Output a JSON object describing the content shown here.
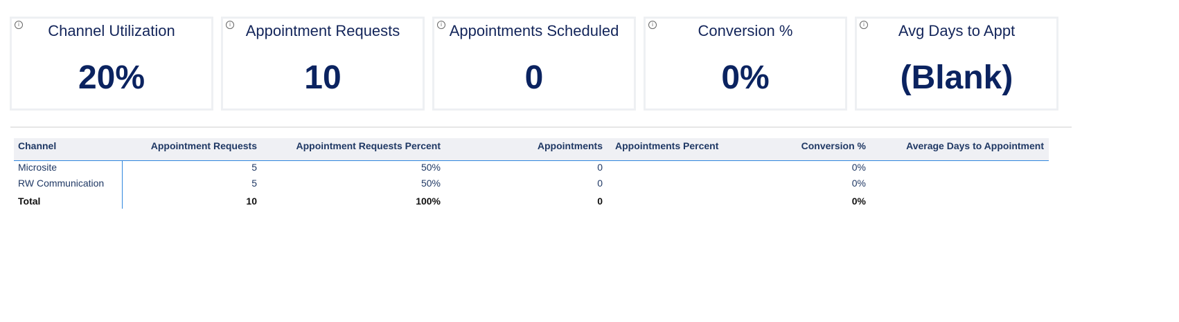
{
  "cards": [
    {
      "title": "Channel Utilization",
      "value": "20%"
    },
    {
      "title": "Appointment Requests",
      "value": "10"
    },
    {
      "title": "Appointments Scheduled",
      "value": "0"
    },
    {
      "title": "Conversion %",
      "value": "0%"
    },
    {
      "title": "Avg Days to Appt",
      "value": "(Blank)"
    }
  ],
  "table": {
    "headers": [
      "Channel",
      "Appointment Requests",
      "Appointment Requests Percent",
      "Appointments",
      "Appointments Percent",
      "Conversion %",
      "Average Days to Appointment"
    ],
    "rows": [
      [
        "Microsite",
        "5",
        "50%",
        "0",
        "",
        "0%",
        ""
      ],
      [
        "RW Communication",
        "5",
        "50%",
        "0",
        "",
        "0%",
        ""
      ]
    ],
    "total": [
      "Total",
      "10",
      "100%",
      "0",
      "",
      "0%",
      ""
    ]
  },
  "colors": {
    "accent": "#2e86de",
    "kpi": "#0b2360"
  }
}
